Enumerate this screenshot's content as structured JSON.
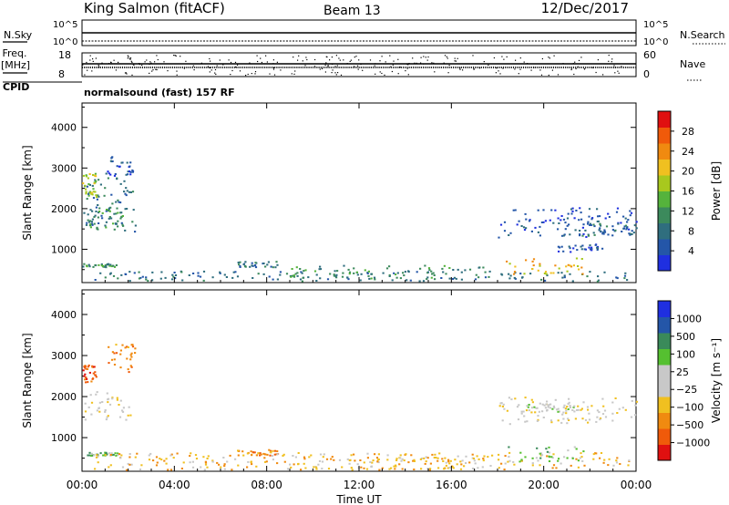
{
  "header": {
    "station": "King Salmon (fitACF)",
    "beam": "Beam 13",
    "date": "12/Dec/2017"
  },
  "strips": {
    "nsky_label": "N.Sky",
    "nsky_ticks": [
      "10^5",
      "10^0"
    ],
    "nsearch_label": "N.Search",
    "nsearch_ticks": [
      "10^5",
      "10^0"
    ],
    "freq_label": "Freq.",
    "freq_unit": "[MHz]",
    "freq_ticks": [
      "18",
      "8"
    ],
    "nave_label": "Nave",
    "nave_ticks": [
      "60",
      "0"
    ],
    "cpid_label": "CPID",
    "cpid_text": "normalsound (fast) 157 RF"
  },
  "xaxis": {
    "label": "Time UT",
    "ticks": [
      "00:00",
      "04:00",
      "08:00",
      "12:00",
      "16:00",
      "20:00",
      "00:00"
    ]
  },
  "colors": {
    "power": [
      "#1f2fe0",
      "#2456a8",
      "#2f6e7e",
      "#3c8a5c",
      "#55b33c",
      "#a8c81e",
      "#f0c020",
      "#f08a10",
      "#f05a0a",
      "#e01010"
    ],
    "velocity": [
      "#e01010",
      "#f05a0a",
      "#f08a10",
      "#f0c020",
      "#c8c8c8",
      "#c8c8c8",
      "#55c030",
      "#3a8a5a",
      "#2456a8",
      "#1f2fe0"
    ]
  },
  "chart_data": [
    {
      "type": "heatmap",
      "title": "",
      "xlabel": "Time UT",
      "ylabel": "Slant Range [km]",
      "colorbar_label": "Power [dB]",
      "colorbar_ticks": [
        "4",
        "8",
        "12",
        "16",
        "20",
        "24",
        "28"
      ],
      "x_range_hours": [
        0,
        24
      ],
      "ylim": [
        180,
        4600
      ],
      "y_ticks": [
        1000,
        2000,
        3000,
        4000
      ],
      "regions": [
        {
          "t0": 0.0,
          "t1": 2.3,
          "r0": 1450,
          "r1": 2800,
          "level": 2
        },
        {
          "t0": 0.0,
          "t1": 0.6,
          "r0": 2300,
          "r1": 2900,
          "level": 5
        },
        {
          "t0": 0.3,
          "t1": 1.8,
          "r0": 1550,
          "r1": 2050,
          "level": 3
        },
        {
          "t0": 1.0,
          "t1": 2.2,
          "r0": 2800,
          "r1": 3300,
          "level": 1
        },
        {
          "t0": 0.0,
          "t1": 1.5,
          "r0": 580,
          "r1": 660,
          "level": 3
        },
        {
          "t0": 6.7,
          "t1": 8.5,
          "r0": 580,
          "r1": 720,
          "level": 2
        },
        {
          "t0": 0.5,
          "t1": 23.8,
          "r0": 230,
          "r1": 480,
          "level": 2
        },
        {
          "t0": 9.0,
          "t1": 17.5,
          "r0": 280,
          "r1": 620,
          "level": 3
        },
        {
          "t0": 18.3,
          "t1": 21.7,
          "r0": 400,
          "r1": 800,
          "level": 6
        },
        {
          "t0": 18.0,
          "t1": 24.0,
          "r0": 1300,
          "r1": 2050,
          "level": 1
        },
        {
          "t0": 21.5,
          "t1": 24.0,
          "r0": 1350,
          "r1": 1650,
          "level": 2
        },
        {
          "t0": 20.5,
          "t1": 22.5,
          "r0": 950,
          "r1": 1150,
          "level": 1
        }
      ]
    },
    {
      "type": "heatmap",
      "title": "",
      "xlabel": "Time UT",
      "ylabel": "Slant Range [km]",
      "colorbar_label": "Velocity [m s⁻¹]",
      "colorbar_ticks": [
        "1000",
        "500",
        "100",
        "25",
        "−25",
        "−100",
        "−500",
        "−1000"
      ],
      "x_range_hours": [
        0,
        24
      ],
      "ylim": [
        180,
        4600
      ],
      "y_ticks": [
        1000,
        2000,
        3000,
        4000
      ],
      "regions": [
        {
          "t0": 0.0,
          "t1": 0.6,
          "r0": 2350,
          "r1": 2900,
          "level": 1
        },
        {
          "t0": 1.0,
          "t1": 2.3,
          "r0": 2550,
          "r1": 3300,
          "level": 2
        },
        {
          "t0": 0.0,
          "t1": 2.2,
          "r0": 1450,
          "r1": 2150,
          "level": 4
        },
        {
          "t0": 0.2,
          "t1": 1.5,
          "r0": 580,
          "r1": 660,
          "level": 6
        },
        {
          "t0": 6.7,
          "t1": 8.5,
          "r0": 580,
          "r1": 720,
          "level": 2
        },
        {
          "t0": 0.5,
          "t1": 23.8,
          "r0": 230,
          "r1": 650,
          "level": 3
        },
        {
          "t0": 9.0,
          "t1": 17.0,
          "r0": 250,
          "r1": 550,
          "level": 3
        },
        {
          "t0": 18.3,
          "t1": 21.7,
          "r0": 420,
          "r1": 800,
          "level": 6
        },
        {
          "t0": 18.0,
          "t1": 24.0,
          "r0": 1350,
          "r1": 2000,
          "level": 4
        },
        {
          "t0": 19.0,
          "t1": 21.5,
          "r0": 1650,
          "r1": 1850,
          "level": 5
        }
      ]
    }
  ]
}
